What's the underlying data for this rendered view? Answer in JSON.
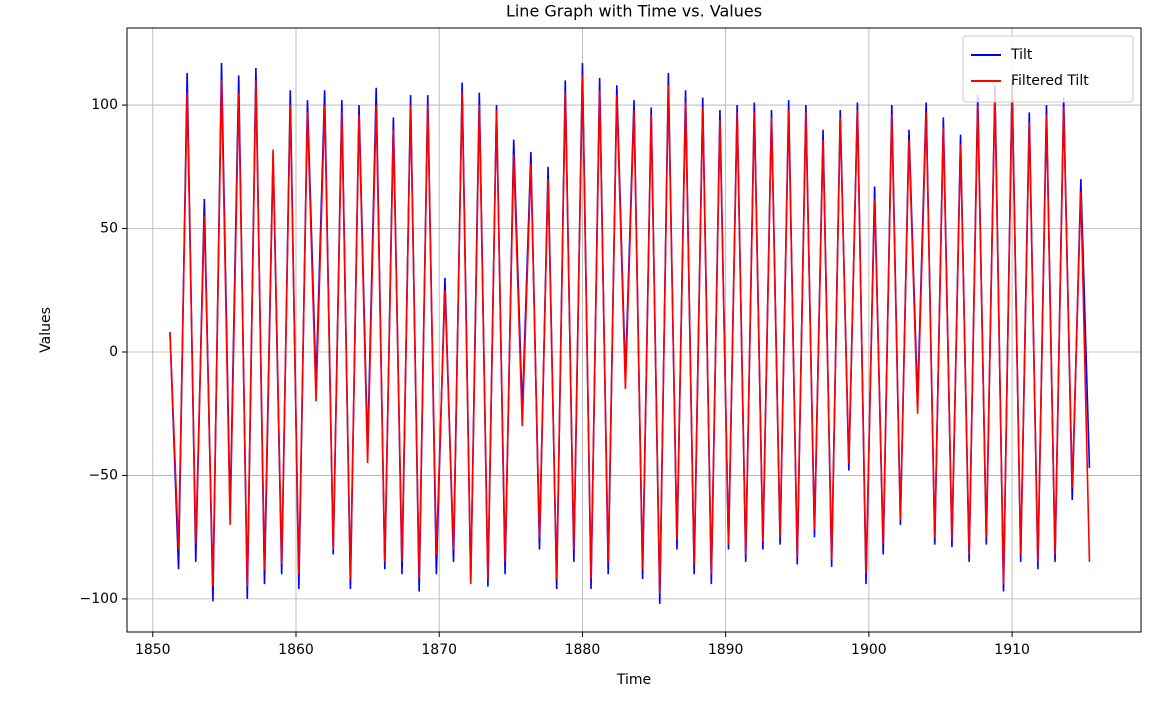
{
  "chart_data": {
    "type": "line",
    "title": "Line Graph with Time vs. Values",
    "x_label": "Time",
    "y_label": "Values",
    "x": [
      1851.2,
      1851.8,
      1852.4,
      1853.0,
      1853.6,
      1854.2,
      1854.8,
      1855.4,
      1856.0,
      1856.6,
      1857.2,
      1857.8,
      1858.4,
      1859.0,
      1859.6,
      1860.2,
      1860.8,
      1861.4,
      1862.0,
      1862.6,
      1863.2,
      1863.8,
      1864.4,
      1865.0,
      1865.6,
      1866.2,
      1866.8,
      1867.4,
      1868.0,
      1868.6,
      1869.2,
      1869.8,
      1870.4,
      1871.0,
      1871.6,
      1872.2,
      1872.8,
      1873.4,
      1874.0,
      1874.6,
      1875.2,
      1875.8,
      1876.4,
      1877.0,
      1877.6,
      1878.2,
      1878.8,
      1879.4,
      1880.0,
      1880.6,
      1881.2,
      1881.8,
      1882.4,
      1883.0,
      1883.6,
      1884.2,
      1884.8,
      1885.4,
      1886.0,
      1886.6,
      1887.2,
      1887.8,
      1888.4,
      1889.0,
      1889.6,
      1890.2,
      1890.8,
      1891.4,
      1892.0,
      1892.6,
      1893.2,
      1893.8,
      1894.4,
      1895.0,
      1895.6,
      1896.2,
      1896.8,
      1897.4,
      1898.0,
      1898.6,
      1899.2,
      1899.8,
      1900.4,
      1901.0,
      1901.6,
      1902.2,
      1902.8,
      1903.4,
      1904.0,
      1904.6,
      1905.2,
      1905.8,
      1906.4,
      1907.0,
      1907.6,
      1908.2,
      1908.8,
      1909.4,
      1910.0,
      1910.6,
      1911.2,
      1911.8,
      1912.4,
      1913.0,
      1913.6,
      1914.2,
      1914.8,
      1915.4
    ],
    "series": [
      {
        "name": "Tilt",
        "color": "#0000ff",
        "values": [
          8,
          -88,
          113,
          -85,
          62,
          -101,
          117,
          -65,
          112,
          -100,
          115,
          -94,
          80,
          -90,
          106,
          -96,
          102,
          -13,
          106,
          -82,
          102,
          -96,
          100,
          -40,
          107,
          -88,
          95,
          -90,
          104,
          -97,
          104,
          -90,
          30,
          -85,
          109,
          -93,
          105,
          -95,
          100,
          -90,
          86,
          -24,
          81,
          -80,
          75,
          -96,
          110,
          -85,
          117,
          -96,
          111,
          -90,
          108,
          -10,
          102,
          -92,
          99,
          -102,
          113,
          -80,
          106,
          -90,
          103,
          -94,
          98,
          -80,
          100,
          -85,
          101,
          -80,
          98,
          -78,
          102,
          -86,
          100,
          -75,
          90,
          -87,
          98,
          -48,
          101,
          -94,
          67,
          -82,
          100,
          -70,
          90,
          -20,
          101,
          -78,
          95,
          -79,
          88,
          -85,
          104,
          -78,
          108,
          -97,
          110,
          -85,
          97,
          -88,
          100,
          -85,
          103,
          -60,
          70,
          -47
        ]
      },
      {
        "name": "Filtered Tilt",
        "color": "#ff0000",
        "values": [
          8,
          -80,
          105,
          -78,
          55,
          -95,
          110,
          -70,
          105,
          -95,
          110,
          -88,
          82,
          -86,
          100,
          -90,
          97,
          -20,
          100,
          -80,
          97,
          -92,
          96,
          -45,
          100,
          -85,
          90,
          -85,
          100,
          -92,
          100,
          -82,
          25,
          -80,
          105,
          -94,
          100,
          -92,
          98,
          -85,
          80,
          -30,
          76,
          -75,
          70,
          -92,
          105,
          -80,
          112,
          -92,
          106,
          -85,
          104,
          -15,
          98,
          -88,
          96,
          -98,
          108,
          -76,
          101,
          -86,
          99,
          -90,
          94,
          -78,
          97,
          -82,
          97,
          -77,
          95,
          -75,
          98,
          -83,
          97,
          -72,
          86,
          -84,
          95,
          -45,
          98,
          -90,
          62,
          -78,
          96,
          -68,
          86,
          -25,
          97,
          -75,
          91,
          -76,
          84,
          -82,
          100,
          -75,
          104,
          -94,
          106,
          -82,
          93,
          -85,
          96,
          -82,
          99,
          -55,
          65,
          -85
        ]
      }
    ],
    "xlim": [
      1848.2,
      1919.0
    ],
    "ylim": [
      -113.4,
      131.2
    ],
    "xticks": [
      1850,
      1860,
      1870,
      1880,
      1890,
      1900,
      1910
    ],
    "yticks": [
      {
        "value": -100,
        "label": "−100"
      },
      {
        "value": -50,
        "label": "−50"
      },
      0,
      50,
      100
    ],
    "grid": true,
    "legend": "upper right"
  }
}
